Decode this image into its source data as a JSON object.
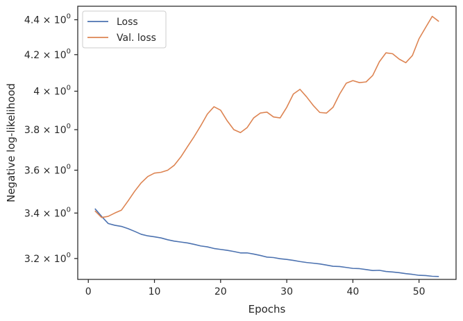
{
  "chart_data": {
    "type": "line",
    "xlabel": "Epochs",
    "ylabel": "Negative log-likelihood",
    "yscale": "log",
    "xlim": [
      -1.6,
      55.6
    ],
    "ylim": [
      3.112,
      4.48
    ],
    "grid": false,
    "legend_placement": "top-left",
    "x_ticks": [
      {
        "value": 0,
        "label": "0"
      },
      {
        "value": 10,
        "label": "10"
      },
      {
        "value": 20,
        "label": "20"
      },
      {
        "value": 30,
        "label": "30"
      },
      {
        "value": 40,
        "label": "40"
      },
      {
        "value": 50,
        "label": "50"
      }
    ],
    "y_ticks": [
      {
        "value": 3.2,
        "base": "3.2",
        "exp": "0"
      },
      {
        "value": 3.4,
        "base": "3.4",
        "exp": "0"
      },
      {
        "value": 3.6,
        "base": "3.6",
        "exp": "0"
      },
      {
        "value": 3.8,
        "base": "3.8",
        "exp": "0"
      },
      {
        "value": 4.0,
        "base": "4",
        "exp": "0"
      },
      {
        "value": 4.2,
        "base": "4.2",
        "exp": "0"
      },
      {
        "value": 4.4,
        "base": "4.4",
        "exp": "0"
      }
    ],
    "y_tick_times": "×",
    "y_tick_base10": "10",
    "series": [
      {
        "name": "Loss",
        "color": "#4c72b0",
        "x": [
          1,
          2,
          3,
          4,
          5,
          6,
          7,
          8,
          9,
          10,
          11,
          12,
          13,
          14,
          15,
          16,
          17,
          18,
          19,
          20,
          21,
          22,
          23,
          24,
          25,
          26,
          27,
          28,
          29,
          30,
          31,
          32,
          33,
          34,
          35,
          36,
          37,
          38,
          39,
          40,
          41,
          42,
          43,
          44,
          45,
          46,
          47,
          48,
          49,
          50,
          51,
          52,
          53
        ],
        "values": [
          3.42,
          3.385,
          3.353,
          3.345,
          3.34,
          3.33,
          3.318,
          3.305,
          3.298,
          3.294,
          3.289,
          3.281,
          3.275,
          3.271,
          3.267,
          3.261,
          3.254,
          3.25,
          3.243,
          3.239,
          3.235,
          3.23,
          3.224,
          3.224,
          3.219,
          3.213,
          3.206,
          3.204,
          3.199,
          3.196,
          3.192,
          3.187,
          3.183,
          3.18,
          3.177,
          3.172,
          3.167,
          3.166,
          3.162,
          3.158,
          3.157,
          3.153,
          3.149,
          3.15,
          3.145,
          3.143,
          3.14,
          3.136,
          3.133,
          3.129,
          3.128,
          3.125,
          3.124
        ]
      },
      {
        "name": "Val. loss",
        "color": "#dd8452",
        "x": [
          1,
          2,
          3,
          4,
          5,
          6,
          7,
          8,
          9,
          10,
          11,
          12,
          13,
          14,
          15,
          16,
          17,
          18,
          19,
          20,
          21,
          22,
          23,
          24,
          25,
          26,
          27,
          28,
          29,
          30,
          31,
          32,
          33,
          34,
          35,
          36,
          37,
          38,
          39,
          40,
          41,
          42,
          43,
          44,
          45,
          46,
          47,
          48,
          49,
          50,
          51,
          52,
          53
        ],
        "values": [
          3.41,
          3.38,
          3.385,
          3.4,
          3.413,
          3.455,
          3.5,
          3.54,
          3.57,
          3.586,
          3.59,
          3.6,
          3.624,
          3.665,
          3.715,
          3.765,
          3.82,
          3.88,
          3.918,
          3.9,
          3.845,
          3.8,
          3.785,
          3.81,
          3.86,
          3.885,
          3.89,
          3.865,
          3.86,
          3.915,
          3.985,
          4.01,
          3.97,
          3.925,
          3.888,
          3.885,
          3.915,
          3.985,
          4.043,
          4.057,
          4.046,
          4.05,
          4.085,
          4.16,
          4.21,
          4.205,
          4.175,
          4.155,
          4.195,
          4.29,
          4.355,
          4.42,
          4.39
        ]
      }
    ]
  }
}
